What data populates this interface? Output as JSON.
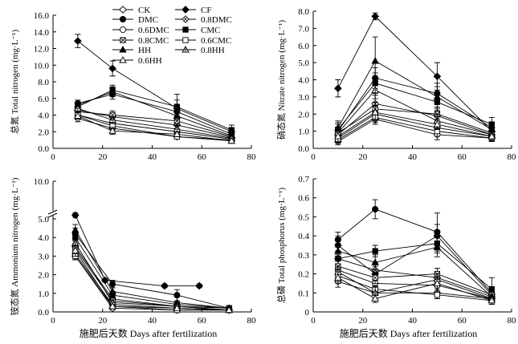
{
  "chart_data": [
    {
      "type": "line",
      "ylabel": "总氮 Total nitrogen (mg·L⁻¹)",
      "xlabel": "",
      "xlim": [
        0,
        80
      ],
      "ylim": [
        0,
        16
      ],
      "xticks": [
        "0",
        "20",
        "40",
        "60",
        "80"
      ],
      "yticks": [
        "0.0",
        "2.0",
        "4.0",
        "6.0",
        "8.0",
        "10.0",
        "12.0",
        "14.0",
        "16.0"
      ],
      "legend": [
        "CK",
        "CF",
        "DMC",
        "0.8DMC",
        "0.6DMC",
        "CMC",
        "0.8CMC",
        "0.6CMC",
        "HH",
        "0.8HH",
        "0.6HH"
      ],
      "legend_position": "top-right",
      "x": [
        10,
        24,
        50,
        72
      ],
      "series": [
        {
          "name": "CK",
          "values": [
            3.6,
            2.4,
            1.4,
            1.0
          ],
          "err": [
            0.4,
            0.4,
            0.3,
            0.2
          ]
        },
        {
          "name": "CF",
          "values": [
            12.9,
            9.6,
            4.8,
            2.0
          ],
          "err": [
            0.8,
            0.9,
            1.0,
            0.4
          ]
        },
        {
          "name": "DMC",
          "values": [
            5.4,
            6.5,
            4.4,
            1.7
          ],
          "err": [
            0.4,
            0.6,
            0.5,
            0.3
          ]
        },
        {
          "name": "0.8DMC",
          "values": [
            4.6,
            3.8,
            2.8,
            1.3
          ],
          "err": [
            0.4,
            0.5,
            0.5,
            0.3
          ]
        },
        {
          "name": "0.6DMC",
          "values": [
            4.0,
            3.0,
            2.0,
            1.1
          ],
          "err": [
            0.4,
            0.4,
            0.4,
            0.2
          ]
        },
        {
          "name": "CMC",
          "values": [
            5.0,
            7.0,
            5.0,
            2.2
          ],
          "err": [
            0.4,
            0.6,
            1.5,
            0.6
          ]
        },
        {
          "name": "0.8CMC",
          "values": [
            4.4,
            4.0,
            3.3,
            1.4
          ],
          "err": [
            0.4,
            0.5,
            0.5,
            0.3
          ]
        },
        {
          "name": "0.6CMC",
          "values": [
            4.0,
            2.7,
            1.4,
            0.9
          ],
          "err": [
            0.4,
            0.4,
            0.3,
            0.2
          ]
        },
        {
          "name": "HH",
          "values": [
            5.2,
            6.8,
            3.9,
            1.5
          ],
          "err": [
            0.4,
            0.6,
            0.5,
            0.3
          ]
        },
        {
          "name": "0.8HH",
          "values": [
            4.8,
            3.4,
            2.3,
            1.2
          ],
          "err": [
            0.4,
            0.4,
            0.4,
            0.3
          ]
        },
        {
          "name": "0.6HH",
          "values": [
            3.9,
            2.1,
            1.7,
            0.9
          ],
          "err": [
            0.4,
            0.4,
            0.3,
            0.2
          ]
        }
      ]
    },
    {
      "type": "line",
      "ylabel": "硝态氮 Nitrate nitrogen (mg·L⁻¹)",
      "xlabel": "",
      "xlim": [
        0,
        80
      ],
      "ylim": [
        0,
        8
      ],
      "xticks": [
        "0",
        "20",
        "40",
        "60",
        "80"
      ],
      "yticks": [
        "0.0",
        "1.0",
        "2.0",
        "3.0",
        "4.0",
        "5.0",
        "6.0",
        "7.0",
        "8.0"
      ],
      "x": [
        10,
        25,
        50,
        72
      ],
      "series": [
        {
          "name": "CK",
          "values": [
            0.4,
            1.7,
            0.8,
            0.6
          ],
          "err": [
            0.2,
            0.3,
            0.3,
            0.2
          ]
        },
        {
          "name": "CF",
          "values": [
            3.5,
            7.7,
            4.2,
            1.0
          ],
          "err": [
            0.5,
            0.2,
            0.8,
            0.3
          ]
        },
        {
          "name": "DMC",
          "values": [
            1.0,
            4.1,
            3.2,
            1.2
          ],
          "err": [
            0.4,
            0.6,
            0.6,
            0.3
          ]
        },
        {
          "name": "0.8DMC",
          "values": [
            0.8,
            2.6,
            1.9,
            0.8
          ],
          "err": [
            0.3,
            0.5,
            0.4,
            0.2
          ]
        },
        {
          "name": "0.6DMC",
          "values": [
            0.6,
            2.0,
            1.2,
            0.7
          ],
          "err": [
            0.3,
            0.4,
            0.3,
            0.2
          ]
        },
        {
          "name": "CMC",
          "values": [
            1.1,
            3.8,
            2.7,
            1.4
          ],
          "err": [
            0.4,
            0.6,
            0.5,
            0.4
          ]
        },
        {
          "name": "0.8CMC",
          "values": [
            0.9,
            2.3,
            2.0,
            0.9
          ],
          "err": [
            0.3,
            0.4,
            0.4,
            0.2
          ]
        },
        {
          "name": "0.6CMC",
          "values": [
            0.5,
            1.8,
            1.0,
            0.6
          ],
          "err": [
            0.2,
            0.3,
            0.3,
            0.2
          ]
        },
        {
          "name": "HH",
          "values": [
            1.2,
            5.1,
            3.0,
            1.1
          ],
          "err": [
            0.4,
            1.4,
            0.6,
            0.3
          ]
        },
        {
          "name": "0.8HH",
          "values": [
            0.9,
            3.4,
            1.6,
            0.8
          ],
          "err": [
            0.3,
            0.5,
            0.4,
            0.2
          ]
        },
        {
          "name": "0.6HH",
          "values": [
            0.7,
            2.1,
            1.4,
            0.7
          ],
          "err": [
            0.3,
            0.4,
            0.3,
            0.2
          ]
        }
      ]
    },
    {
      "type": "line",
      "ylabel": "铵态氮 Ammonium nitrogen (mg·L⁻¹)",
      "xlabel": "施肥后天数 Days after fertilization",
      "xlim": [
        0,
        80
      ],
      "ylim": [
        0,
        10
      ],
      "axis_break": true,
      "xticks": [
        "0",
        "20",
        "40",
        "60",
        "80"
      ],
      "yticks": [
        "0.0",
        "1.0",
        "2.0",
        "3.0",
        "4.0",
        "5.0",
        "10.0"
      ],
      "x": [
        9,
        24,
        50,
        71
      ],
      "series": [
        {
          "name": "CK",
          "values": [
            3.0,
            0.2,
            0.1,
            0.1
          ],
          "err": [
            0.2,
            0.1,
            0.05,
            0.05
          ]
        },
        {
          "name": "CF",
          "values": [
            5.5,
            1.7,
            1.4,
            1.4
          ],
          "x": [
            9,
            21,
            45,
            59
          ],
          "err": [
            0.3,
            0.1,
            0.1,
            0.1
          ]
        },
        {
          "name": "DMC",
          "values": [
            4.2,
            1.5,
            0.9,
            0.2
          ],
          "err": [
            0.3,
            0.2,
            0.3,
            0.1
          ]
        },
        {
          "name": "0.8DMC",
          "values": [
            3.5,
            0.7,
            0.3,
            0.1
          ],
          "err": [
            0.3,
            0.2,
            0.1,
            0.05
          ]
        },
        {
          "name": "0.6DMC",
          "values": [
            3.1,
            0.4,
            0.2,
            0.1
          ],
          "err": [
            0.3,
            0.1,
            0.1,
            0.05
          ]
        },
        {
          "name": "CMC",
          "values": [
            4.0,
            0.9,
            0.4,
            0.2
          ],
          "err": [
            0.3,
            0.2,
            0.1,
            0.1
          ]
        },
        {
          "name": "0.8CMC",
          "values": [
            3.4,
            0.6,
            0.3,
            0.2
          ],
          "err": [
            0.3,
            0.2,
            0.1,
            0.05
          ]
        },
        {
          "name": "0.6CMC",
          "values": [
            3.0,
            0.3,
            0.1,
            0.1
          ],
          "err": [
            0.2,
            0.1,
            0.05,
            0.05
          ]
        },
        {
          "name": "HH",
          "values": [
            4.4,
            1.1,
            0.5,
            0.2
          ],
          "err": [
            0.3,
            0.2,
            0.1,
            0.1
          ]
        },
        {
          "name": "0.8HH",
          "values": [
            3.7,
            0.5,
            0.3,
            0.1
          ],
          "err": [
            0.3,
            0.1,
            0.1,
            0.05
          ]
        },
        {
          "name": "0.6HH",
          "values": [
            3.3,
            0.3,
            0.2,
            0.1
          ],
          "err": [
            0.3,
            0.1,
            0.05,
            0.05
          ]
        }
      ]
    },
    {
      "type": "line",
      "ylabel": "总磷 Total phosphorus (mg·L⁻¹)",
      "xlabel": "施肥后天数 Days after fertilization",
      "xlim": [
        0,
        80
      ],
      "ylim": [
        0,
        0.7
      ],
      "xticks": [
        "0",
        "20",
        "40",
        "60",
        "80"
      ],
      "yticks": [
        "0",
        "0.1",
        "0.2",
        "0.3",
        "0.4",
        "0.5",
        "0.6",
        "0.7"
      ],
      "x": [
        10,
        25,
        50,
        72
      ],
      "series": [
        {
          "name": "CK",
          "values": [
            0.16,
            0.1,
            0.1,
            0.07
          ],
          "err": [
            0.03,
            0.03,
            0.03,
            0.02
          ]
        },
        {
          "name": "CF",
          "values": [
            0.35,
            0.2,
            0.4,
            0.09
          ],
          "err": [
            0.05,
            0.04,
            0.06,
            0.03
          ]
        },
        {
          "name": "DMC",
          "values": [
            0.38,
            0.54,
            0.42,
            0.1
          ],
          "err": [
            0.04,
            0.05,
            0.1,
            0.03
          ]
        },
        {
          "name": "0.8DMC",
          "values": [
            0.28,
            0.22,
            0.18,
            0.08
          ],
          "err": [
            0.04,
            0.04,
            0.03,
            0.02
          ]
        },
        {
          "name": "0.6DMC",
          "values": [
            0.22,
            0.15,
            0.14,
            0.07
          ],
          "err": [
            0.03,
            0.03,
            0.03,
            0.02
          ]
        },
        {
          "name": "CMC",
          "values": [
            0.28,
            0.32,
            0.36,
            0.12
          ],
          "err": [
            0.04,
            0.03,
            0.05,
            0.06
          ]
        },
        {
          "name": "0.8CMC",
          "values": [
            0.24,
            0.18,
            0.2,
            0.09
          ],
          "err": [
            0.03,
            0.03,
            0.03,
            0.02
          ]
        },
        {
          "name": "0.6CMC",
          "values": [
            0.19,
            0.12,
            0.09,
            0.06
          ],
          "err": [
            0.03,
            0.02,
            0.02,
            0.02
          ]
        },
        {
          "name": "HH",
          "values": [
            0.32,
            0.26,
            0.34,
            0.08
          ],
          "err": [
            0.04,
            0.04,
            0.05,
            0.03
          ]
        },
        {
          "name": "0.8HH",
          "values": [
            0.21,
            0.1,
            0.17,
            0.07
          ],
          "err": [
            0.03,
            0.03,
            0.03,
            0.02
          ]
        },
        {
          "name": "0.6HH",
          "values": [
            0.18,
            0.07,
            0.15,
            0.06
          ],
          "err": [
            0.03,
            0.02,
            0.03,
            0.02
          ]
        }
      ]
    }
  ]
}
